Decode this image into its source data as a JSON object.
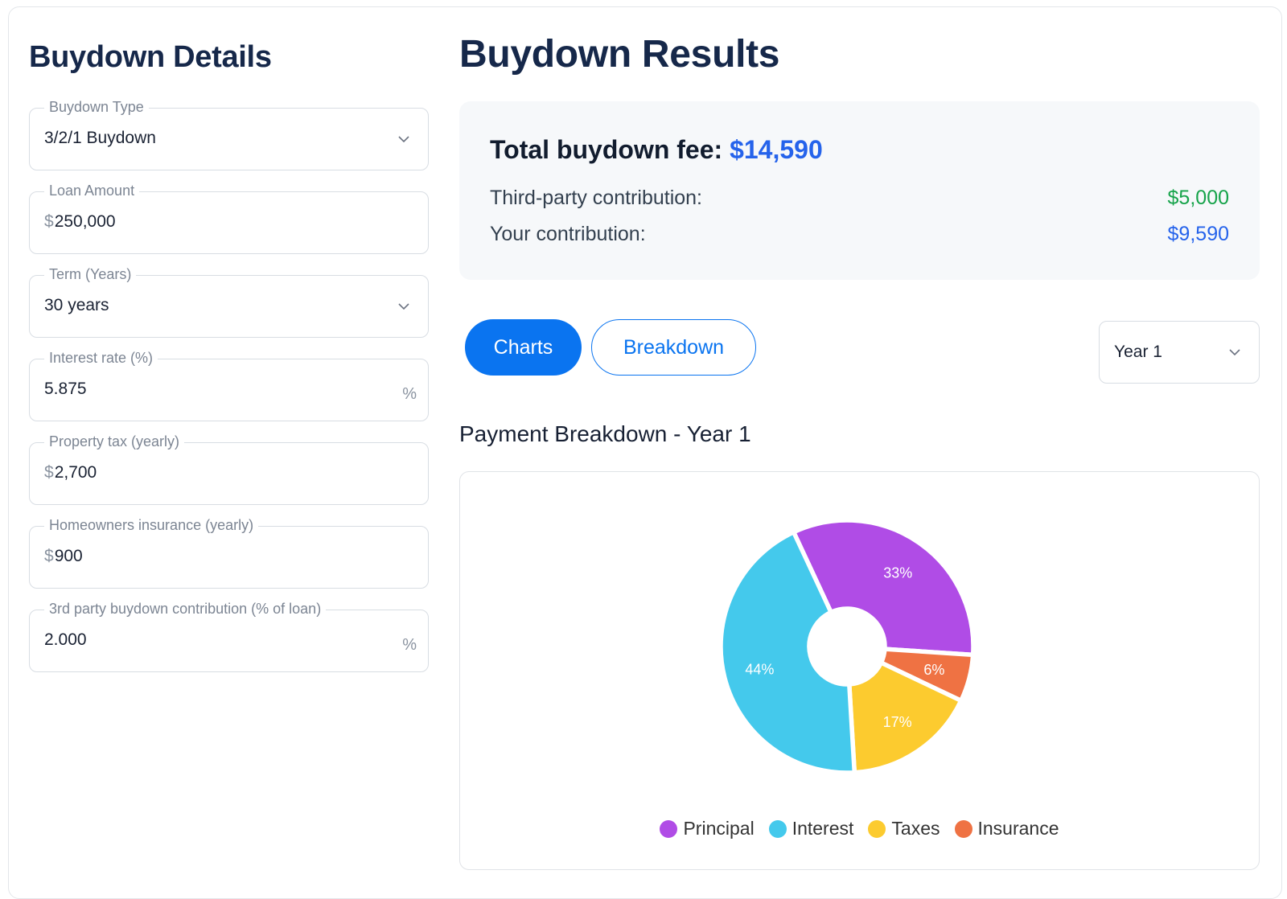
{
  "left": {
    "title": "Buydown Details",
    "fields": [
      {
        "label": "Buydown Type",
        "value": "3/2/1 Buydown",
        "type": "select"
      },
      {
        "label": "Loan Amount",
        "prefix": "$",
        "value": "250,000",
        "type": "input"
      },
      {
        "label": "Term (Years)",
        "value": "30 years",
        "type": "select"
      },
      {
        "label": "Interest rate (%)",
        "value": "5.875",
        "suffix": "%",
        "type": "input"
      },
      {
        "label": "Property tax (yearly)",
        "prefix": "$",
        "value": "2,700",
        "type": "input"
      },
      {
        "label": "Homeowners insurance (yearly)",
        "prefix": "$",
        "value": "900",
        "type": "input"
      },
      {
        "label": "3rd party buydown contribution (% of loan)",
        "value": "2.000",
        "suffix": "%",
        "type": "input"
      }
    ]
  },
  "right": {
    "title": "Buydown Results",
    "summary": {
      "total_label": "Total buydown fee:",
      "total_value": "$14,590",
      "third_party_label": "Third-party contribution:",
      "third_party_value": "$5,000",
      "yours_label": "Your contribution:",
      "yours_value": "$9,590"
    },
    "tabs": {
      "charts": "Charts",
      "breakdown": "Breakdown",
      "active": "charts"
    },
    "year_select": {
      "value": "Year 1"
    },
    "chart_title": "Payment Breakdown - Year 1"
  },
  "colors": {
    "principal": "#b04ce6",
    "interest": "#44c9ec",
    "taxes": "#fccb2f",
    "insurance": "#ef7243"
  },
  "chart_data": {
    "type": "pie",
    "title": "Payment Breakdown - Year 1",
    "donut": true,
    "legend_position": "bottom",
    "slices": [
      {
        "name": "Principal",
        "value": 33,
        "label": "33%"
      },
      {
        "name": "Insurance",
        "value": 6,
        "label": "6%"
      },
      {
        "name": "Taxes",
        "value": 17,
        "label": "17%"
      },
      {
        "name": "Interest",
        "value": 44,
        "label": "44%"
      }
    ],
    "legend": [
      "Principal",
      "Interest",
      "Taxes",
      "Insurance"
    ]
  }
}
